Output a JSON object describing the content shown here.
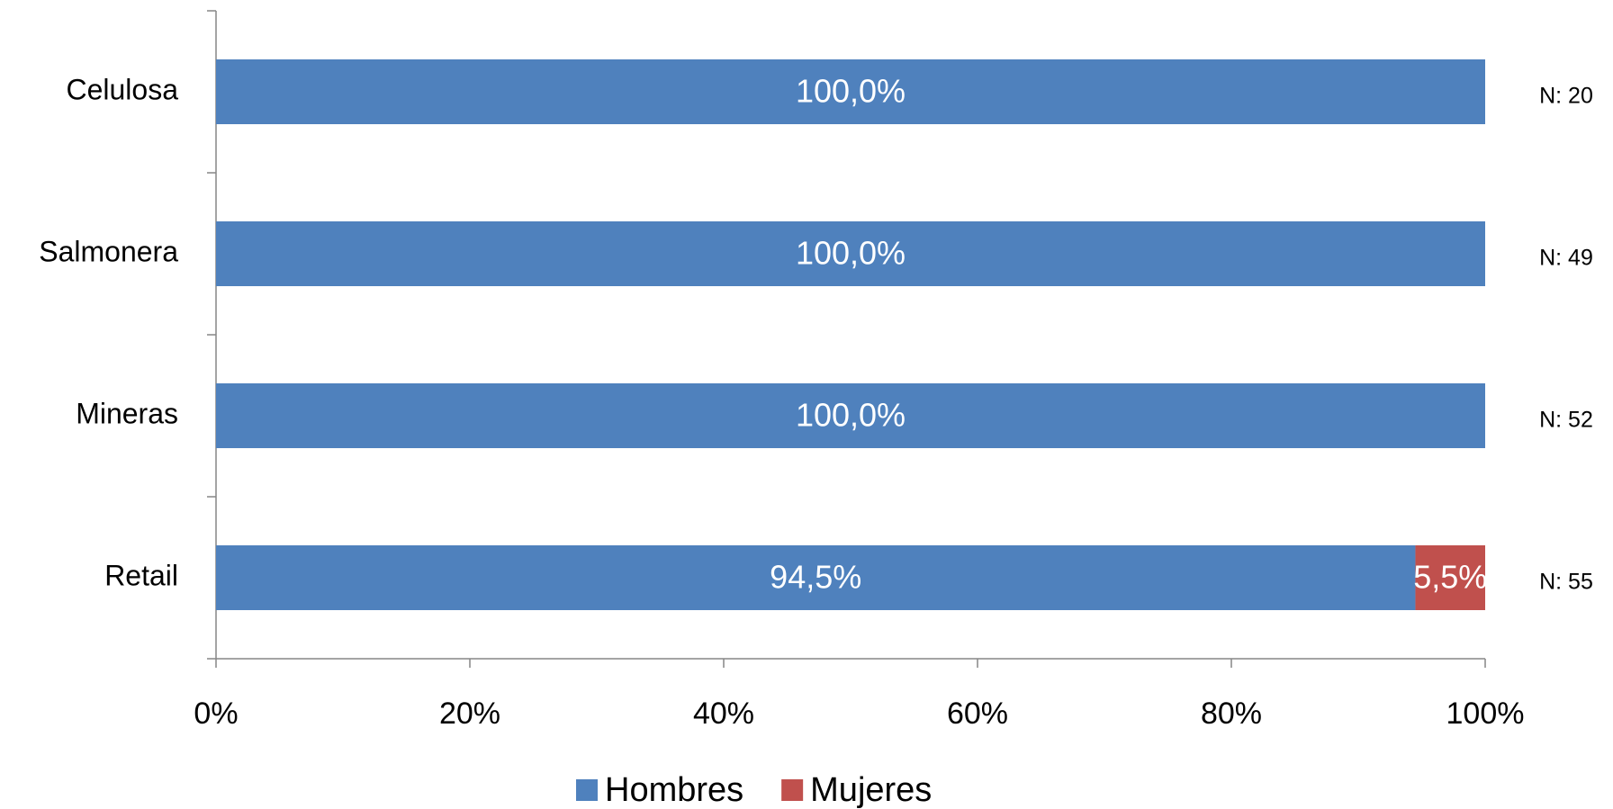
{
  "chart_data": {
    "type": "stacked-barh",
    "categories": [
      "Celulosa",
      "Salmonera",
      "Mineras",
      "Retail"
    ],
    "series": [
      {
        "name": "Hombres",
        "color": "#4f81bd",
        "values": [
          100,
          100,
          100,
          94.5
        ],
        "value_labels": [
          "100,0%",
          "100,0%",
          "100,0%",
          "94,5%"
        ]
      },
      {
        "name": "Mujeres",
        "color": "#c0504d",
        "values": [
          0,
          0,
          0,
          5.5
        ],
        "value_labels": [
          null,
          null,
          null,
          "5,5%"
        ]
      }
    ],
    "annotations": [
      "N: 20",
      "N: 49",
      "N: 52",
      "N: 55"
    ],
    "xlim": [
      0,
      100
    ],
    "xticks": [
      {
        "value": 0,
        "label": "0%"
      },
      {
        "value": 20,
        "label": "20%"
      },
      {
        "value": 40,
        "label": "40%"
      },
      {
        "value": 60,
        "label": "60%"
      },
      {
        "value": 80,
        "label": "80%"
      },
      {
        "value": 100,
        "label": "100%"
      }
    ],
    "legend": "bottom"
  }
}
